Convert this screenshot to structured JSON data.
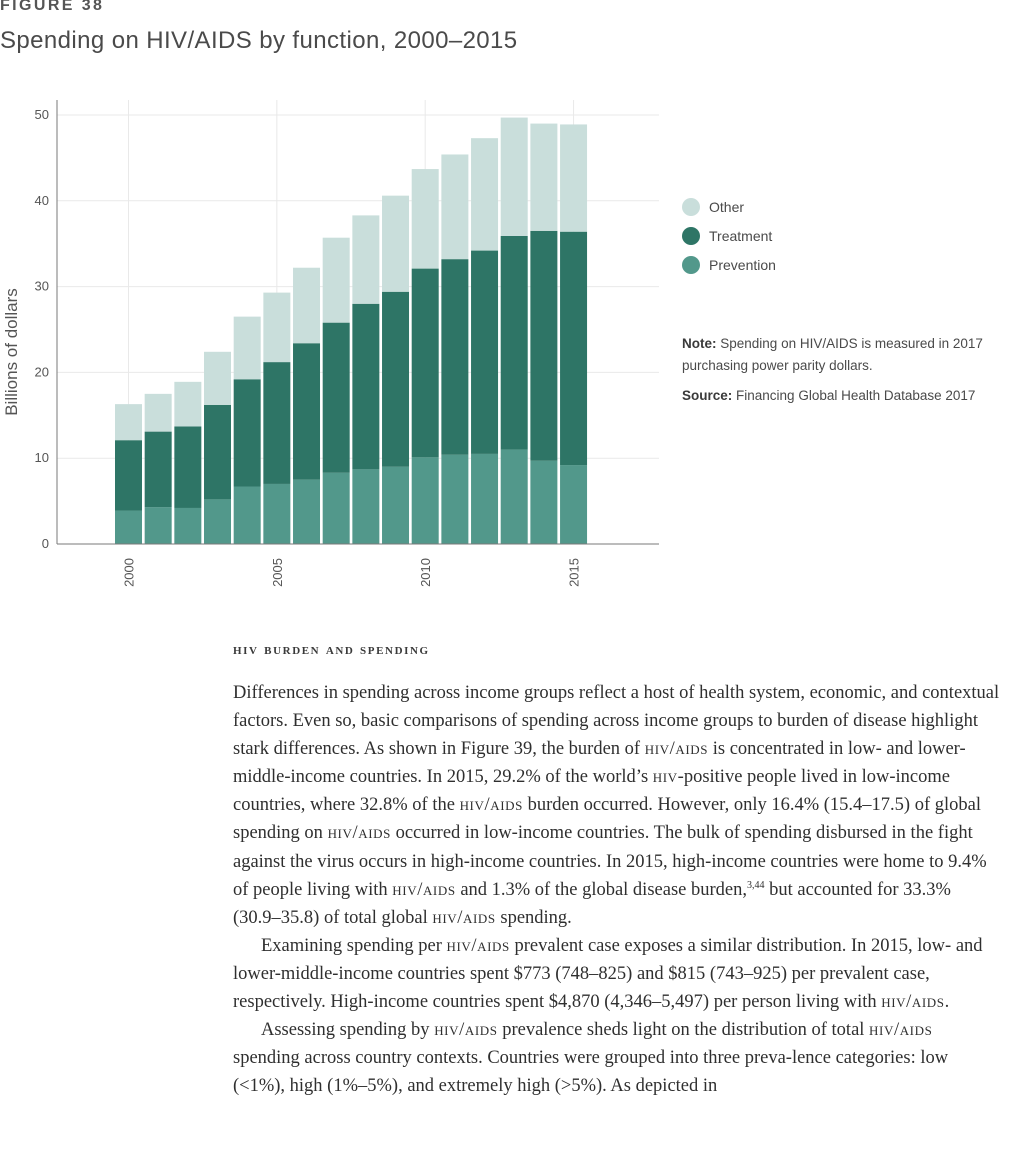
{
  "figure": {
    "label": "FIGURE 38",
    "title": "Spending on HIV/AIDS by function, 2000–2015"
  },
  "chart_data": {
    "type": "bar",
    "stacked": true,
    "categories": [
      "2000",
      "2001",
      "2002",
      "2003",
      "2004",
      "2005",
      "2006",
      "2007",
      "2008",
      "2009",
      "2010",
      "2011",
      "2012",
      "2013",
      "2014",
      "2015"
    ],
    "x_tick_labels": [
      "2000",
      "2005",
      "2010",
      "2015"
    ],
    "y_ticks": [
      "0",
      "10",
      "20",
      "30",
      "40",
      "50"
    ],
    "ylabel": "Billions of dollars",
    "ylim": [
      0,
      52
    ],
    "grid": true,
    "legend_position": "right",
    "series": [
      {
        "name": "Prevention",
        "color": "#52988b",
        "values": [
          3.9,
          4.3,
          4.2,
          5.2,
          6.7,
          7.0,
          7.5,
          8.3,
          8.7,
          9.0,
          10.1,
          10.4,
          10.5,
          11.0,
          9.7,
          9.2
        ]
      },
      {
        "name": "Treatment",
        "color": "#2e7566",
        "values": [
          8.2,
          8.8,
          9.5,
          11.0,
          12.5,
          14.2,
          15.9,
          17.5,
          19.3,
          20.4,
          22.0,
          22.8,
          23.7,
          24.9,
          26.8,
          27.2
        ]
      },
      {
        "name": "Other",
        "color": "#c9dedb",
        "values": [
          4.2,
          4.4,
          5.2,
          6.2,
          7.3,
          8.1,
          8.8,
          9.9,
          10.3,
          11.2,
          11.6,
          12.2,
          13.1,
          13.8,
          12.5,
          12.5
        ]
      }
    ]
  },
  "legend": {
    "items": [
      {
        "label": "Other",
        "color": "#c9dedb"
      },
      {
        "label": "Treatment",
        "color": "#2e7566"
      },
      {
        "label": "Prevention",
        "color": "#52988b"
      }
    ]
  },
  "note": {
    "label": "Note:",
    "text": "Spending on HIV/AIDS is measured in 2017 purchasing power parity dollars."
  },
  "source": {
    "label": "Source:",
    "text": "Financing Global Health Database 2017"
  },
  "section": {
    "heading": "HIV BURDEN AND SPENDING"
  },
  "body": {
    "p1": [
      "Differences in spending across income groups reflect a host of health system, economic, and contextual factors. Even so, basic comparisons of spending across income groups to burden of disease highlight stark differences. As shown in Figure 39, the burden of ",
      "HIV/AIDS",
      " is concentrated in low- and lower-middle-income countries. In 2015, 29.2% of the world’s ",
      "HIV",
      "-positive people lived in low-income countries, where 32.8% of the ",
      "HIV/AIDS",
      " burden occurred. However, only 16.4% (15.4–17.5) of global spending on ",
      "HIV/AIDS",
      " occurred in low-income countries. The bulk of spending disbursed in the fight against the virus occurs in high-income countries. In 2015, high-income countries were home to 9.4% of people living with ",
      "HIV/AIDS",
      " and 1.3% of the global disease burden,",
      "3,44",
      " but accounted for 33.3% (30.9–35.8) of total global ",
      "HIV/AIDS",
      " spending."
    ],
    "p2": [
      "Examining spending per ",
      "HIV/AIDS",
      " prevalent case exposes a similar distribution. In 2015, low- and lower-middle-income countries spent $773 (748–825) and $815 (743–925) per prevalent case, respectively. High-income countries spent $4,870 (4,346–5,497) per person living with ",
      "HIV/AIDS",
      "."
    ],
    "p3": [
      "Assessing spending by ",
      "HIV/AIDS",
      " prevalence sheds light on the distribution of total ",
      "HIV/AIDS",
      " spending across country contexts. Countries were grouped into three preva-lence categories: low (<1%), high (1%–5%), and extremely high (>5%). As depicted in"
    ]
  }
}
